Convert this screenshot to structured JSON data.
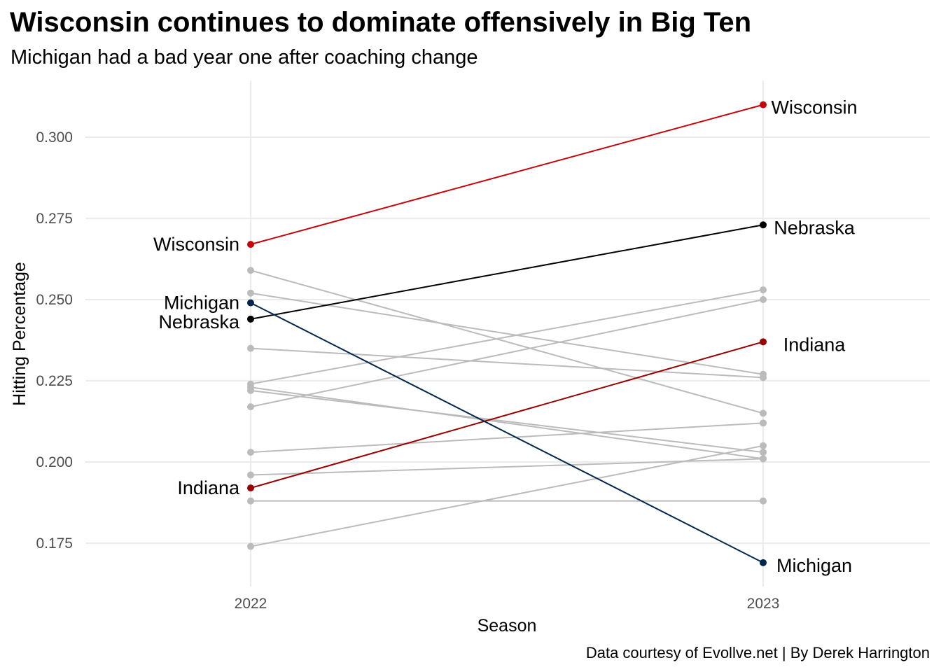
{
  "chart_data": {
    "type": "line",
    "title": "Wisconsin continues to dominate offensively in Big Ten",
    "subtitle": "Michigan had a bad year one after coaching change",
    "caption": "Data courtesy of Evollve.net | By Derek Harrington",
    "xlabel": "Season",
    "ylabel": "Hitting Percentage",
    "x": [
      "2022",
      "2023"
    ],
    "ylim": [
      0.165,
      0.315
    ],
    "yticks": [
      0.175,
      0.2,
      0.225,
      0.25,
      0.275,
      0.3
    ],
    "ytick_labels": [
      "0.175",
      "0.200",
      "0.225",
      "0.250",
      "0.275",
      "0.300"
    ],
    "grid": true,
    "series": [
      {
        "name": "Wisconsin",
        "values": [
          0.267,
          0.31
        ],
        "color": "#c5050c",
        "highlight": true
      },
      {
        "name": "Nebraska",
        "values": [
          0.244,
          0.273
        ],
        "color": "#000000",
        "highlight": true
      },
      {
        "name": "Indiana",
        "values": [
          0.192,
          0.237
        ],
        "color": "#990000",
        "highlight": true
      },
      {
        "name": "Michigan",
        "values": [
          0.249,
          0.169
        ],
        "color": "#00274c",
        "highlight": true
      },
      {
        "values": [
          0.259,
          0.215
        ],
        "color": "#bbbbbb"
      },
      {
        "values": [
          0.252,
          0.227
        ],
        "color": "#bbbbbb"
      },
      {
        "values": [
          0.235,
          0.226
        ],
        "color": "#bbbbbb"
      },
      {
        "values": [
          0.224,
          0.253
        ],
        "color": "#bbbbbb"
      },
      {
        "values": [
          0.223,
          0.201
        ],
        "color": "#bbbbbb"
      },
      {
        "values": [
          0.217,
          0.25
        ],
        "color": "#bbbbbb"
      },
      {
        "values": [
          0.222,
          0.203
        ],
        "color": "#bbbbbb"
      },
      {
        "values": [
          0.203,
          0.212
        ],
        "color": "#bbbbbb"
      },
      {
        "values": [
          0.196,
          0.201
        ],
        "color": "#bbbbbb"
      },
      {
        "values": [
          0.188,
          0.188
        ],
        "color": "#bbbbbb"
      },
      {
        "values": [
          0.174,
          0.205
        ],
        "color": "#bbbbbb"
      }
    ]
  }
}
